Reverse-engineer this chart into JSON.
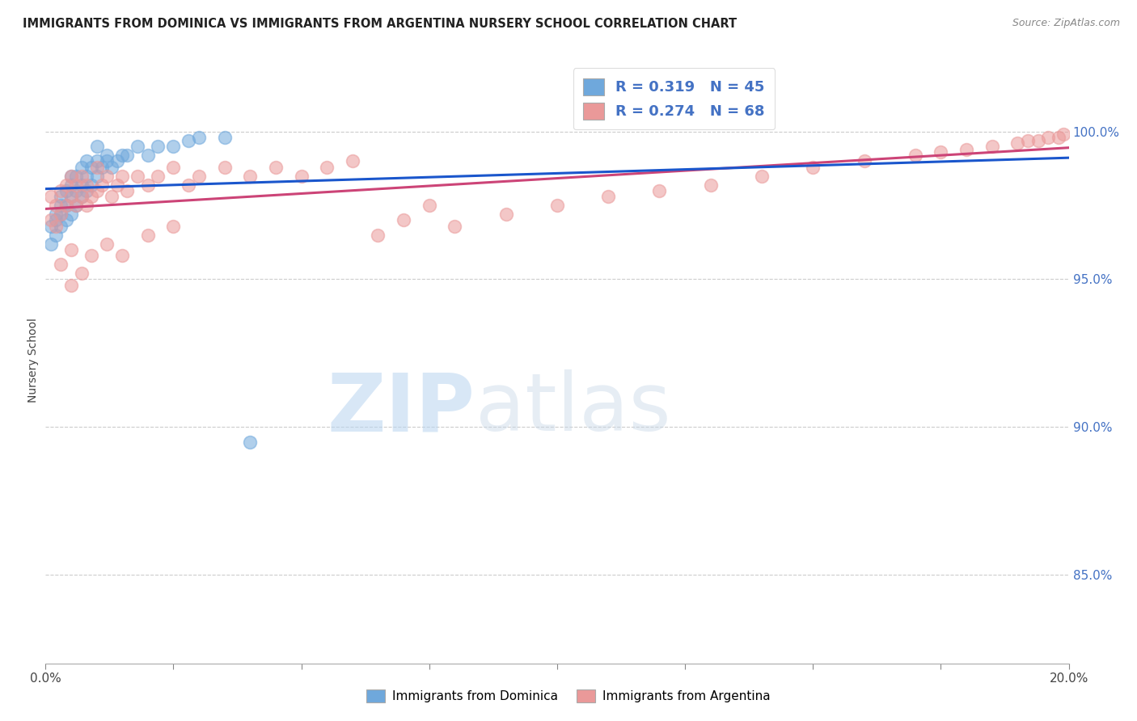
{
  "title": "IMMIGRANTS FROM DOMINICA VS IMMIGRANTS FROM ARGENTINA NURSERY SCHOOL CORRELATION CHART",
  "source": "Source: ZipAtlas.com",
  "ylabel": "Nursery School",
  "ytick_labels": [
    "100.0%",
    "95.0%",
    "90.0%",
    "85.0%"
  ],
  "ytick_values": [
    1.0,
    0.95,
    0.9,
    0.85
  ],
  "legend_label1": "Immigrants from Dominica",
  "legend_label2": "Immigrants from Argentina",
  "R1": 0.319,
  "N1": 45,
  "R2": 0.274,
  "N2": 68,
  "color1": "#6fa8dc",
  "color2": "#ea9999",
  "line_color1": "#1a56cc",
  "line_color2": "#cc4477",
  "xmin": 0.0,
  "xmax": 0.2,
  "ymin": 0.82,
  "ymax": 1.025,
  "dominica_x": [
    0.001,
    0.001,
    0.002,
    0.002,
    0.002,
    0.003,
    0.003,
    0.003,
    0.003,
    0.004,
    0.004,
    0.004,
    0.005,
    0.005,
    0.005,
    0.005,
    0.006,
    0.006,
    0.006,
    0.007,
    0.007,
    0.007,
    0.008,
    0.008,
    0.008,
    0.009,
    0.009,
    0.01,
    0.01,
    0.01,
    0.011,
    0.012,
    0.012,
    0.013,
    0.014,
    0.015,
    0.016,
    0.018,
    0.02,
    0.022,
    0.025,
    0.028,
    0.03,
    0.035,
    0.04
  ],
  "dominica_y": [
    0.962,
    0.968,
    0.972,
    0.965,
    0.97,
    0.975,
    0.968,
    0.972,
    0.978,
    0.97,
    0.975,
    0.98,
    0.972,
    0.978,
    0.982,
    0.985,
    0.975,
    0.98,
    0.985,
    0.978,
    0.982,
    0.988,
    0.98,
    0.985,
    0.99,
    0.982,
    0.988,
    0.985,
    0.99,
    0.995,
    0.988,
    0.99,
    0.992,
    0.988,
    0.99,
    0.992,
    0.992,
    0.995,
    0.992,
    0.995,
    0.995,
    0.997,
    0.998,
    0.998,
    0.895
  ],
  "argentina_x": [
    0.001,
    0.001,
    0.002,
    0.002,
    0.003,
    0.003,
    0.004,
    0.004,
    0.005,
    0.005,
    0.005,
    0.006,
    0.006,
    0.007,
    0.007,
    0.008,
    0.008,
    0.009,
    0.01,
    0.01,
    0.011,
    0.012,
    0.013,
    0.014,
    0.015,
    0.016,
    0.018,
    0.02,
    0.022,
    0.025,
    0.028,
    0.03,
    0.035,
    0.04,
    0.045,
    0.05,
    0.055,
    0.06,
    0.065,
    0.07,
    0.075,
    0.08,
    0.09,
    0.1,
    0.11,
    0.12,
    0.13,
    0.14,
    0.15,
    0.16,
    0.17,
    0.175,
    0.18,
    0.185,
    0.19,
    0.192,
    0.194,
    0.196,
    0.198,
    0.199,
    0.003,
    0.005,
    0.007,
    0.009,
    0.012,
    0.015,
    0.02,
    0.025
  ],
  "argentina_y": [
    0.97,
    0.978,
    0.968,
    0.975,
    0.972,
    0.98,
    0.975,
    0.982,
    0.978,
    0.985,
    0.96,
    0.975,
    0.982,
    0.978,
    0.985,
    0.975,
    0.982,
    0.978,
    0.98,
    0.988,
    0.982,
    0.985,
    0.978,
    0.982,
    0.985,
    0.98,
    0.985,
    0.982,
    0.985,
    0.988,
    0.982,
    0.985,
    0.988,
    0.985,
    0.988,
    0.985,
    0.988,
    0.99,
    0.965,
    0.97,
    0.975,
    0.968,
    0.972,
    0.975,
    0.978,
    0.98,
    0.982,
    0.985,
    0.988,
    0.99,
    0.992,
    0.993,
    0.994,
    0.995,
    0.996,
    0.997,
    0.997,
    0.998,
    0.998,
    0.999,
    0.955,
    0.948,
    0.952,
    0.958,
    0.962,
    0.958,
    0.965,
    0.968
  ],
  "watermark_zip": "ZIP",
  "watermark_atlas": "atlas"
}
